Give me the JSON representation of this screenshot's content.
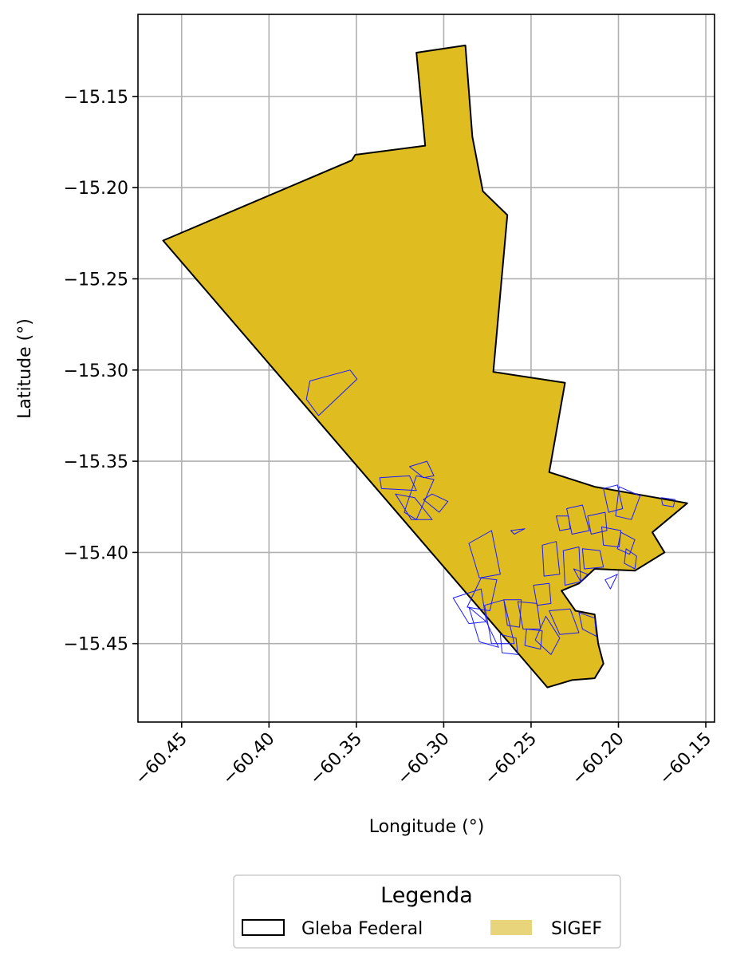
{
  "map": {
    "xlabel": "Longitude (°)",
    "ylabel": "Latitude (°)",
    "xlim": [
      -60.475,
      -60.145
    ],
    "ylim": [
      -15.493,
      -15.105
    ],
    "xticks": [
      -60.45,
      -60.4,
      -60.35,
      -60.3,
      -60.25,
      -60.2,
      -60.15
    ],
    "xtick_labels": [
      "−60.45",
      "−60.40",
      "−60.35",
      "−60.30",
      "−60.25",
      "−60.20",
      "−60.15"
    ],
    "yticks": [
      -15.15,
      -15.2,
      -15.25,
      -15.3,
      -15.35,
      -15.4,
      -15.45
    ],
    "ytick_labels": [
      "−15.15",
      "−15.20",
      "−15.25",
      "−15.30",
      "−15.35",
      "−15.40",
      "−15.45"
    ],
    "grid": true,
    "colors": {
      "gleba_fill": "#dfbc20",
      "gleba_edge": "#000000",
      "sigef_edge": "#1a1aff",
      "sigef_legend_fill": "#e8d47a",
      "grid": "#b0b0b0"
    },
    "gleba_boundary": [
      [
        -60.3156,
        -15.126
      ],
      [
        -60.2876,
        -15.122
      ],
      [
        -60.2836,
        -15.172
      ],
      [
        -60.2776,
        -15.202
      ],
      [
        -60.2636,
        -15.215
      ],
      [
        -60.2716,
        -15.301
      ],
      [
        -60.2306,
        -15.307
      ],
      [
        -60.2396,
        -15.356
      ],
      [
        -60.2136,
        -15.364
      ],
      [
        -60.1606,
        -15.373
      ],
      [
        -60.1806,
        -15.389
      ],
      [
        -60.1736,
        -15.4
      ],
      [
        -60.1906,
        -15.41
      ],
      [
        -60.2136,
        -15.409
      ],
      [
        -60.2226,
        -15.417
      ],
      [
        -60.2326,
        -15.421
      ],
      [
        -60.2246,
        -15.432
      ],
      [
        -60.2136,
        -15.434
      ],
      [
        -60.2116,
        -15.45
      ],
      [
        -60.2086,
        -15.461
      ],
      [
        -60.2136,
        -15.469
      ],
      [
        -60.2266,
        -15.47
      ],
      [
        -60.2406,
        -15.474
      ],
      [
        -60.4606,
        -15.229
      ],
      [
        -60.3526,
        -15.185
      ],
      [
        -60.3506,
        -15.182
      ],
      [
        -60.3106,
        -15.177
      ]
    ],
    "sigef_parcels": [
      [
        [
          -60.3786,
          -15.316
        ],
        [
          -60.3766,
          -15.306
        ],
        [
          -60.3536,
          -15.3
        ],
        [
          -60.3496,
          -15.305
        ],
        [
          -60.3716,
          -15.325
        ]
      ],
      [
        [
          -60.3366,
          -15.359
        ],
        [
          -60.3196,
          -15.358
        ],
        [
          -60.3156,
          -15.366
        ],
        [
          -60.3356,
          -15.365
        ]
      ],
      [
        [
          -60.3196,
          -15.353
        ],
        [
          -60.3096,
          -15.35
        ],
        [
          -60.3056,
          -15.358
        ],
        [
          -60.3116,
          -15.359
        ]
      ],
      [
        [
          -60.3156,
          -15.358
        ],
        [
          -60.3056,
          -15.36
        ],
        [
          -60.3156,
          -15.382
        ],
        [
          -60.3226,
          -15.378
        ]
      ],
      [
        [
          -60.3276,
          -15.368
        ],
        [
          -60.3166,
          -15.37
        ],
        [
          -60.3066,
          -15.382
        ],
        [
          -60.3186,
          -15.382
        ]
      ],
      [
        [
          -60.3066,
          -15.368
        ],
        [
          -60.2976,
          -15.372
        ],
        [
          -60.3026,
          -15.378
        ],
        [
          -60.3116,
          -15.371
        ]
      ],
      [
        [
          -60.2856,
          -15.395
        ],
        [
          -60.2726,
          -15.388
        ],
        [
          -60.2676,
          -15.412
        ],
        [
          -60.2796,
          -15.414
        ]
      ],
      [
        [
          -60.2786,
          -15.414
        ],
        [
          -60.2696,
          -15.415
        ],
        [
          -60.2736,
          -15.432
        ],
        [
          -60.2866,
          -15.43
        ]
      ],
      [
        [
          -60.2946,
          -15.425
        ],
        [
          -60.2786,
          -15.42
        ],
        [
          -60.2756,
          -15.438
        ],
        [
          -60.2856,
          -15.439
        ]
      ],
      [
        [
          -60.2766,
          -15.429
        ],
        [
          -60.2656,
          -15.426
        ],
        [
          -60.2596,
          -15.45
        ],
        [
          -60.2726,
          -15.45
        ]
      ],
      [
        [
          -60.2656,
          -15.426
        ],
        [
          -60.2556,
          -15.426
        ],
        [
          -60.2566,
          -15.441
        ],
        [
          -60.2636,
          -15.44
        ]
      ],
      [
        [
          -60.2576,
          -15.427
        ],
        [
          -60.2466,
          -15.428
        ],
        [
          -60.2446,
          -15.442
        ],
        [
          -60.2546,
          -15.442
        ]
      ],
      [
        [
          -60.2436,
          -15.396
        ],
        [
          -60.2356,
          -15.394
        ],
        [
          -60.2336,
          -15.412
        ],
        [
          -60.2426,
          -15.413
        ]
      ],
      [
        [
          -60.2316,
          -15.399
        ],
        [
          -60.2226,
          -15.397
        ],
        [
          -60.2216,
          -15.416
        ],
        [
          -60.2306,
          -15.418
        ]
      ],
      [
        [
          -60.2206,
          -15.398
        ],
        [
          -60.2106,
          -15.399
        ],
        [
          -60.2086,
          -15.408
        ],
        [
          -60.2196,
          -15.409
        ]
      ],
      [
        [
          -60.2296,
          -15.376
        ],
        [
          -60.2206,
          -15.374
        ],
        [
          -60.2166,
          -15.388
        ],
        [
          -60.2266,
          -15.39
        ]
      ],
      [
        [
          -60.2176,
          -15.38
        ],
        [
          -60.2076,
          -15.378
        ],
        [
          -60.2066,
          -15.388
        ],
        [
          -60.2156,
          -15.39
        ]
      ],
      [
        [
          -60.2086,
          -15.365
        ],
        [
          -60.2006,
          -15.363
        ],
        [
          -60.1976,
          -15.376
        ],
        [
          -60.2056,
          -15.378
        ]
      ],
      [
        [
          -60.1996,
          -15.364
        ],
        [
          -60.1876,
          -15.369
        ],
        [
          -60.1926,
          -15.382
        ],
        [
          -60.2016,
          -15.38
        ]
      ],
      [
        [
          -60.2096,
          -15.386
        ],
        [
          -60.1986,
          -15.388
        ],
        [
          -60.1996,
          -15.397
        ],
        [
          -60.2086,
          -15.396
        ]
      ],
      [
        [
          -60.1986,
          -15.389
        ],
        [
          -60.1906,
          -15.393
        ],
        [
          -60.1936,
          -15.401
        ],
        [
          -60.2006,
          -15.398
        ]
      ],
      [
        [
          -60.1956,
          -15.398
        ],
        [
          -60.1896,
          -15.402
        ],
        [
          -60.1906,
          -15.409
        ],
        [
          -60.1966,
          -15.406
        ]
      ],
      [
        [
          -60.2356,
          -15.38
        ],
        [
          -60.2286,
          -15.38
        ],
        [
          -60.2276,
          -15.387
        ],
        [
          -60.2336,
          -15.388
        ]
      ],
      [
        [
          -60.2616,
          -15.388
        ],
        [
          -60.2536,
          -15.387
        ],
        [
          -60.2596,
          -15.39
        ]
      ],
      [
        [
          -60.2486,
          -15.418
        ],
        [
          -60.2396,
          -15.417
        ],
        [
          -60.2386,
          -15.428
        ],
        [
          -60.2466,
          -15.429
        ]
      ],
      [
        [
          -60.2396,
          -15.432
        ],
        [
          -60.2276,
          -15.431
        ],
        [
          -60.2226,
          -15.444
        ],
        [
          -60.2336,
          -15.445
        ]
      ],
      [
        [
          -60.2416,
          -15.435
        ],
        [
          -60.2336,
          -15.447
        ],
        [
          -60.2386,
          -15.456
        ],
        [
          -60.2476,
          -15.448
        ]
      ],
      [
        [
          -60.2226,
          -15.433
        ],
        [
          -60.2136,
          -15.436
        ],
        [
          -60.2126,
          -15.446
        ],
        [
          -60.2206,
          -15.442
        ]
      ],
      [
        [
          -60.2526,
          -15.442
        ],
        [
          -60.2436,
          -15.443
        ],
        [
          -60.2446,
          -15.453
        ],
        [
          -60.2536,
          -15.451
        ]
      ],
      [
        [
          -60.2076,
          -15.415
        ],
        [
          -60.2006,
          -15.412
        ],
        [
          -60.2046,
          -15.42
        ]
      ],
      [
        [
          -60.1756,
          -15.37
        ],
        [
          -60.1676,
          -15.371
        ],
        [
          -60.1686,
          -15.375
        ],
        [
          -60.1746,
          -15.374
        ]
      ],
      [
        [
          -60.2256,
          -15.409
        ],
        [
          -60.2176,
          -15.412
        ],
        [
          -60.2216,
          -15.416
        ]
      ],
      [
        [
          -60.2856,
          -15.43
        ],
        [
          -60.2756,
          -15.438
        ],
        [
          -60.2686,
          -15.452
        ],
        [
          -60.2796,
          -15.449
        ]
      ],
      [
        [
          -60.2676,
          -15.445
        ],
        [
          -60.2586,
          -15.447
        ],
        [
          -60.2576,
          -15.456
        ],
        [
          -60.2666,
          -15.455
        ]
      ]
    ]
  },
  "legend": {
    "title": "Legenda",
    "items": [
      {
        "label": "Gleba Federal"
      },
      {
        "label": "SIGEF"
      }
    ]
  }
}
